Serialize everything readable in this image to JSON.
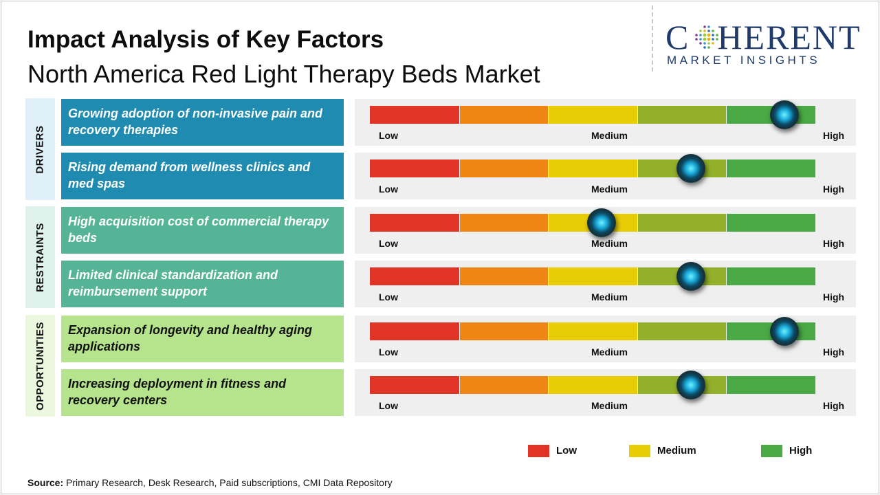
{
  "title": "Impact Analysis of Key Factors",
  "subtitle": "North America Red Light Therapy Beds  Market",
  "logo": {
    "word_pre": "C",
    "word_post": "HERENT",
    "sub": "MARKET INSIGHTS"
  },
  "colors": {
    "scale": [
      "#e03427",
      "#ee8514",
      "#e8cc05",
      "#92b02a",
      "#4aa845"
    ],
    "drivers_box": "#1f8bb0",
    "drivers_label_bg": "#dff0f8",
    "restraints_box": "#55b495",
    "restraints_label_bg": "#e0f2ec",
    "opportunities_box": "#b5e48d",
    "opportunities_label_bg": "#ebf7df"
  },
  "scale_labels": {
    "low": "Low",
    "medium": "Medium",
    "high": "High"
  },
  "chart_data": {
    "type": "gauge",
    "scale": [
      "Low",
      "Medium",
      "High"
    ],
    "range": [
      0,
      1
    ],
    "groups": [
      {
        "name": "DRIVERS",
        "factors": [
          {
            "label": "Growing adoption of non-invasive pain and recovery therapies",
            "impact": 0.93
          },
          {
            "label": "Rising demand from wellness clinics and med spas",
            "impact": 0.72
          }
        ]
      },
      {
        "name": "RESTRAINTS",
        "factors": [
          {
            "label": "High acquisition cost of commercial therapy beds",
            "impact": 0.52
          },
          {
            "label": "Limited clinical standardization and reimbursement support",
            "impact": 0.72
          }
        ]
      },
      {
        "name": "OPPORTUNITIES",
        "factors": [
          {
            "label": "Expansion of longevity and healthy aging applications",
            "impact": 0.93
          },
          {
            "label": "Increasing deployment in fitness and recovery centers",
            "impact": 0.72
          }
        ]
      }
    ]
  },
  "legend": [
    {
      "label": "Low",
      "color": "#e03427"
    },
    {
      "label": "Medium",
      "color": "#e8cc05"
    },
    {
      "label": "High",
      "color": "#4aa845"
    }
  ],
  "source": {
    "label": "Source:",
    "text": " Primary Research, Desk Research, Paid subscriptions, CMI Data Repository"
  }
}
